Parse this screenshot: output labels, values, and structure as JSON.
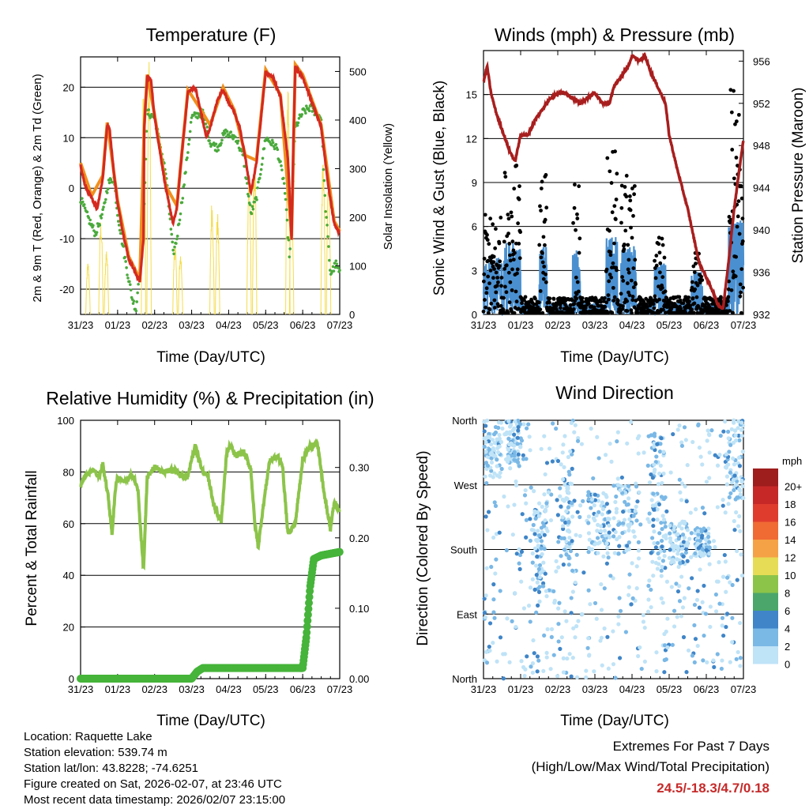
{
  "colors": {
    "temp_2m": "#d42a1f",
    "temp_9m": "#f0901e",
    "dewpoint": "#4aaa3c",
    "solar": "#f5dc4a",
    "sonic_wind": "#4a90d0",
    "gust": "#000000",
    "pressure": "#a81e1e",
    "rh": "#8cc44a",
    "precip": "#46b43a"
  },
  "x_axis": {
    "tick_labels": [
      "31/23",
      "01/23",
      "02/23",
      "03/23",
      "04/23",
      "05/23",
      "06/23",
      "07/23"
    ],
    "tick_days": [
      0,
      1,
      2,
      3,
      4,
      5,
      6,
      7
    ],
    "xlabel": "Time (Day/UTC)"
  },
  "chart_data": [
    {
      "id": "temperature",
      "type": "line",
      "title": "Temperature (F)",
      "ylabel": "2m & 9m T (Red, Orange) & 2m Td (Green)",
      "y2label": "Solar Insolation (Yellow)",
      "ylim": [
        -25,
        26
      ],
      "yticks": [
        -20,
        -10,
        0,
        10,
        20
      ],
      "y2lim": [
        0,
        530
      ],
      "y2ticks": [
        0,
        100,
        200,
        300,
        400,
        500
      ],
      "series": [
        {
          "name": "2m T",
          "x": [
            0,
            0.12,
            0.3,
            0.45,
            0.6,
            0.72,
            0.78,
            0.9,
            1.0,
            1.15,
            1.3,
            1.6,
            1.7,
            1.72,
            1.8,
            1.9,
            2.0,
            2.3,
            2.5,
            2.6,
            2.75,
            2.9,
            3.1,
            3.25,
            3.4,
            3.5,
            3.7,
            3.85,
            4.0,
            4.15,
            4.3,
            4.45,
            4.6,
            4.75,
            5.0,
            5.2,
            5.4,
            5.6,
            5.7,
            5.75,
            5.8,
            6.0,
            6.2,
            6.5,
            6.7,
            6.85,
            7.0
          ],
          "values": [
            4.5,
            0.5,
            -2,
            -4,
            2,
            12.5,
            12,
            3,
            -3,
            -9,
            -14,
            -18.5,
            -10,
            12,
            22,
            21.5,
            14,
            0,
            -7,
            -4,
            8,
            19,
            20,
            15,
            10,
            12,
            17.5,
            19.5,
            17,
            15,
            12,
            6,
            -1,
            5,
            23,
            22,
            18,
            6,
            -10,
            10,
            24,
            22,
            18,
            12,
            0,
            -7,
            -9
          ]
        },
        {
          "name": "9m T",
          "x": [
            0,
            0.3,
            0.6,
            0.72,
            1.0,
            1.3,
            1.6,
            1.72,
            1.8,
            2.0,
            2.3,
            2.6,
            2.9,
            3.25,
            3.5,
            3.85,
            4.15,
            4.45,
            4.75,
            5.0,
            5.4,
            5.7,
            5.8,
            6.0,
            6.5,
            6.85,
            7.0
          ],
          "values": [
            5,
            -1.5,
            2.5,
            13,
            -2.5,
            -13.5,
            -18,
            12.5,
            22.5,
            14.5,
            0.5,
            -3.5,
            19.5,
            15.5,
            12.5,
            20,
            15.5,
            6.5,
            5.5,
            23.5,
            18.5,
            -9.5,
            24.5,
            22.5,
            12.5,
            -6.5,
            -8.5
          ]
        },
        {
          "name": "2m Td",
          "x": [
            0,
            0.15,
            0.4,
            0.6,
            0.75,
            0.9,
            1.0,
            1.2,
            1.4,
            1.5,
            1.7,
            1.8,
            2.0,
            2.3,
            2.5,
            2.6,
            2.8,
            3.0,
            3.3,
            3.5,
            3.7,
            3.9,
            4.2,
            4.4,
            4.6,
            4.75,
            5.0,
            5.3,
            5.5,
            5.65,
            5.8,
            6.0,
            6.2,
            6.5,
            6.6,
            6.75,
            6.9,
            7.0
          ],
          "values": [
            -2,
            -5,
            -9,
            -5,
            1,
            2,
            -5,
            -14,
            -22,
            -24,
            -7,
            15,
            14,
            3,
            -13,
            -10,
            1,
            14,
            15,
            9,
            8,
            11,
            10,
            6,
            -5,
            -2,
            10,
            8,
            1,
            -14,
            12,
            15,
            16,
            14,
            -2,
            -17,
            -15,
            -17
          ]
        }
      ],
      "solar_peaks_day": [
        0.2,
        0.55,
        0.7,
        1.7,
        1.85,
        2.55,
        2.7,
        3.55,
        3.7,
        4.55,
        4.7,
        5.6,
        5.7,
        6.55,
        6.7
      ],
      "solar_peak_values": [
        110,
        200,
        140,
        480,
        520,
        150,
        130,
        240,
        210,
        300,
        320,
        480,
        260,
        340,
        300
      ]
    },
    {
      "id": "winds",
      "type": "scatter",
      "title": "Winds (mph) & Pressure (mb)",
      "ylabel": "Sonic Wind & Gust (Blue, Black)",
      "y2label": "Station Pressure (Maroon)",
      "ylim": [
        0,
        18
      ],
      "yticks": [
        0,
        3,
        6,
        9,
        12,
        15
      ],
      "y2lim": [
        932,
        957
      ],
      "y2ticks": [
        932,
        936,
        940,
        944,
        948,
        952,
        956
      ],
      "pressure": {
        "x": [
          0,
          0.1,
          0.2,
          0.35,
          0.5,
          0.7,
          0.85,
          1.0,
          1.2,
          1.4,
          1.6,
          1.8,
          2.0,
          2.2,
          2.4,
          2.6,
          2.8,
          3.0,
          3.2,
          3.4,
          3.5,
          3.7,
          3.9,
          4.0,
          4.2,
          4.35,
          4.5,
          4.7,
          4.9,
          5.0,
          5.2,
          5.5,
          5.8,
          6.0,
          6.2,
          6.3,
          6.45,
          6.6,
          6.75,
          6.9,
          7.0
        ],
        "values": [
          954,
          955.5,
          953,
          951,
          949.5,
          947.5,
          946.5,
          949,
          949,
          950.5,
          951.5,
          952.5,
          953,
          953,
          952.5,
          952,
          952.5,
          953,
          952,
          952,
          953.5,
          954.5,
          955.5,
          956.5,
          956,
          956.5,
          955,
          953.5,
          952,
          949,
          946,
          942,
          937,
          935.5,
          934,
          933,
          932.5,
          937,
          942,
          946,
          948.5
        ]
      },
      "gust_activity_windows_day": [
        [
          0,
          0.5
        ],
        [
          0.55,
          1.0
        ],
        [
          1.5,
          1.7
        ],
        [
          2.4,
          2.6
        ],
        [
          3.3,
          3.6
        ],
        [
          3.7,
          4.1
        ],
        [
          4.6,
          4.9
        ],
        [
          5.6,
          5.9
        ],
        [
          6.6,
          7.0
        ]
      ],
      "gust_activity_peaks": [
        6.8,
        10.5,
        9.8,
        8.9,
        11.7,
        9.5,
        5.5,
        4.2,
        15.8
      ]
    },
    {
      "id": "rh_precip",
      "type": "line",
      "title": "Relative Humidity (%) & Precipitation (in)",
      "ylabel": "Percent & Total Rainfall",
      "ylim": [
        0,
        100
      ],
      "yticks": [
        0,
        20,
        40,
        60,
        80,
        100
      ],
      "y2lim": [
        0,
        0.367
      ],
      "y2ticks": [
        0,
        0.1,
        0.2,
        0.3
      ],
      "y2ticklabels": [
        "0.00",
        "0.10",
        "0.20",
        "0.30"
      ],
      "series": [
        {
          "name": "RH",
          "x": [
            0,
            0.15,
            0.35,
            0.5,
            0.6,
            0.75,
            0.85,
            0.95,
            1.0,
            1.2,
            1.4,
            1.55,
            1.6,
            1.7,
            1.8,
            2.0,
            2.2,
            2.5,
            2.7,
            2.9,
            3.0,
            3.1,
            3.3,
            3.45,
            3.6,
            3.8,
            3.95,
            4.05,
            4.2,
            4.4,
            4.6,
            4.7,
            4.8,
            4.9,
            5.1,
            5.3,
            5.45,
            5.6,
            5.8,
            6.0,
            6.2,
            6.4,
            6.5,
            6.6,
            6.75,
            6.85,
            7.0
          ],
          "values": [
            75,
            79,
            81,
            78,
            83,
            70,
            56,
            75,
            78,
            76,
            79,
            73,
            62,
            42,
            78,
            82,
            80,
            81,
            79,
            78,
            85,
            90,
            80,
            78,
            67,
            61,
            88,
            90,
            86,
            88,
            81,
            61,
            51,
            63,
            84,
            86,
            83,
            56,
            60,
            85,
            90,
            91,
            80,
            70,
            58,
            68,
            65
          ]
        },
        {
          "name": "Precip",
          "x": [
            0,
            3.0,
            3.15,
            3.3,
            3.6,
            6.0,
            6.1,
            6.2,
            6.3,
            6.5,
            7.0
          ],
          "values": [
            0,
            0,
            0.01,
            0.015,
            0.015,
            0.015,
            0.06,
            0.13,
            0.17,
            0.175,
            0.18
          ]
        }
      ]
    },
    {
      "id": "wind_direction",
      "type": "scatter",
      "title": "Wind Direction",
      "ylabel": "Direction (Colored By Speed)",
      "yticks_labels": [
        "North",
        "East",
        "South",
        "West",
        "North"
      ],
      "yticks_deg": [
        0,
        90,
        180,
        270,
        360
      ],
      "legend": {
        "title": "mph",
        "labels": [
          "20+",
          "18",
          "16",
          "14",
          "12",
          "10",
          "8",
          "6",
          "4",
          "2",
          "0"
        ],
        "colors": [
          "#9e1d1d",
          "#c62828",
          "#e03c2e",
          "#f06a34",
          "#f5a145",
          "#e6dc55",
          "#8cc44a",
          "#4aa66a",
          "#3f85c8",
          "#7ab8e6",
          "#bfe3f7"
        ]
      },
      "direction_clusters_day": [
        [
          0,
          0.5,
          280,
          360
        ],
        [
          0.6,
          1.0,
          300,
          360
        ],
        [
          1.3,
          1.7,
          120,
          260
        ],
        [
          2.0,
          2.4,
          150,
          320
        ],
        [
          2.8,
          3.4,
          170,
          260
        ],
        [
          3.5,
          4.2,
          170,
          270
        ],
        [
          4.5,
          4.9,
          150,
          340
        ],
        [
          5.0,
          5.5,
          160,
          220
        ],
        [
          5.7,
          6.1,
          170,
          210
        ],
        [
          6.5,
          7.0,
          250,
          360
        ]
      ]
    }
  ],
  "info": {
    "location": "Location: Raquette Lake",
    "elevation": "Station elevation: 539.74 m",
    "latlon": "Station lat/lon: 43.8228; -74.6251",
    "created": "Figure created on Sat, 2026-02-07, at 23:46 UTC",
    "recent": "Most recent data timestamp: 2026/02/07 23:15:00"
  },
  "extremes": {
    "line1": "Extremes For Past 7 Days",
    "line2": "(High/Low/Max Wind/Total Precipitation)",
    "values": "24.5/-18.3/4.7/0.18"
  }
}
